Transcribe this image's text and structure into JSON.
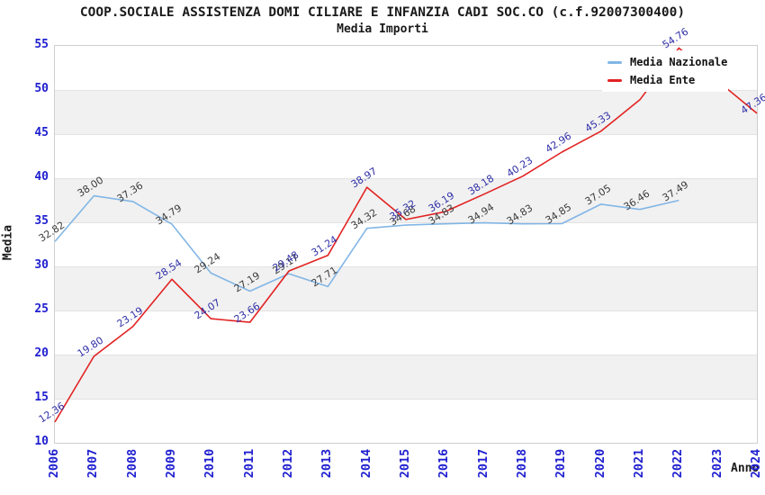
{
  "header": {
    "title": "COOP.SOCIALE ASSISTENZA DOMI CILIARE E INFANZIA CADI SOC.CO (c.f.92007300400)",
    "subtitle": "Media Importi"
  },
  "axes": {
    "y_title": "Media",
    "x_title": "Anno"
  },
  "legend": {
    "items": [
      {
        "label": "Media Nazionale",
        "color": "#82b6e6"
      },
      {
        "label": "Media Ente",
        "color": "#e22222"
      }
    ]
  },
  "colors": {
    "tick_text": "#2020d0",
    "band_fill": "#f1f1f1",
    "gridline": "#e3e3e3",
    "nazionale_line": "#82b6e6",
    "ente_line": "#e22222",
    "nazionale_label_text": "#3d3d3d",
    "ente_label_text": "#3030a8"
  },
  "chart_data": {
    "type": "line",
    "title": "Media Importi",
    "xlabel": "Anno",
    "ylabel": "Media",
    "ylim": [
      10,
      55
    ],
    "ytick_step": 5,
    "grid": "horizontal-bands-alternating",
    "legend_position": "top-right",
    "x": [
      2006,
      2007,
      2008,
      2009,
      2010,
      2011,
      2012,
      2013,
      2014,
      2015,
      2016,
      2017,
      2018,
      2019,
      2020,
      2021,
      2022,
      2023,
      2024
    ],
    "series": [
      {
        "name": "Media Nazionale",
        "color": "#82b6e6",
        "label_color": "#3d3d3d",
        "values": [
          32.82,
          38.0,
          37.36,
          34.79,
          29.24,
          27.19,
          29.17,
          27.71,
          34.32,
          34.68,
          34.83,
          34.94,
          34.83,
          34.85,
          37.05,
          36.46,
          37.49,
          null,
          null
        ],
        "labels": [
          "32.82",
          "38.00",
          "37.36",
          "34.79",
          "29.24",
          "27.19",
          "29.17",
          "27.71",
          "34.32",
          "34.68",
          "34.83",
          "34.94",
          "34.83",
          "34.85",
          "37.05",
          "36.46",
          "37.49",
          null,
          null
        ]
      },
      {
        "name": "Media Ente",
        "color": "#e22222",
        "label_color": "#3030a8",
        "values": [
          12.36,
          19.8,
          23.19,
          28.54,
          24.07,
          23.66,
          29.48,
          31.24,
          38.97,
          35.32,
          36.19,
          38.18,
          40.23,
          42.96,
          45.33,
          48.9,
          54.76,
          51.0,
          47.36
        ],
        "labels": [
          "12.36",
          "19.80",
          "23.19",
          "28.54",
          "24.07",
          "23.66",
          "29.48",
          "31.24",
          "38.97",
          "35.32",
          "36.19",
          "38.18",
          "40.23",
          "42.96",
          "45.33",
          null,
          "54.76",
          null,
          "47.36"
        ]
      }
    ]
  }
}
